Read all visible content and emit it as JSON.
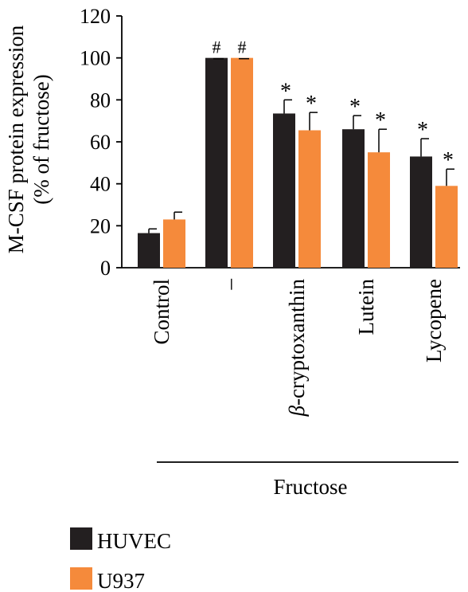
{
  "chart_data": {
    "type": "bar",
    "ylabel_line1": "M-CSF protein expression",
    "ylabel_line2": "(% of fructose)",
    "ylim": [
      0,
      120
    ],
    "yticks": [
      0,
      20,
      40,
      60,
      80,
      100,
      120
    ],
    "categories": [
      {
        "prefix": "",
        "text": "Control"
      },
      {
        "prefix": "",
        "text": "–"
      },
      {
        "prefix": "β",
        "text": "-cryptoxanthin"
      },
      {
        "prefix": "",
        "text": "Lutein"
      },
      {
        "prefix": "",
        "text": "Lycopene"
      }
    ],
    "series": [
      {
        "name": "HUVEC",
        "color": "#231f20",
        "values": [
          16.5,
          100,
          73.5,
          66,
          53
        ],
        "errors": [
          2,
          0,
          6.5,
          6.5,
          8.5
        ],
        "marks": [
          "",
          "#",
          "*",
          "*",
          "*"
        ]
      },
      {
        "name": "U937",
        "color": "#f58a3b",
        "values": [
          23,
          100,
          65.5,
          55,
          39
        ],
        "errors": [
          3.5,
          0,
          8.5,
          11,
          8
        ],
        "marks": [
          "",
          "#",
          "*",
          "*",
          "*"
        ]
      }
    ],
    "group_label": "Fructose",
    "grid": false,
    "legend_position": "bottom-left"
  }
}
